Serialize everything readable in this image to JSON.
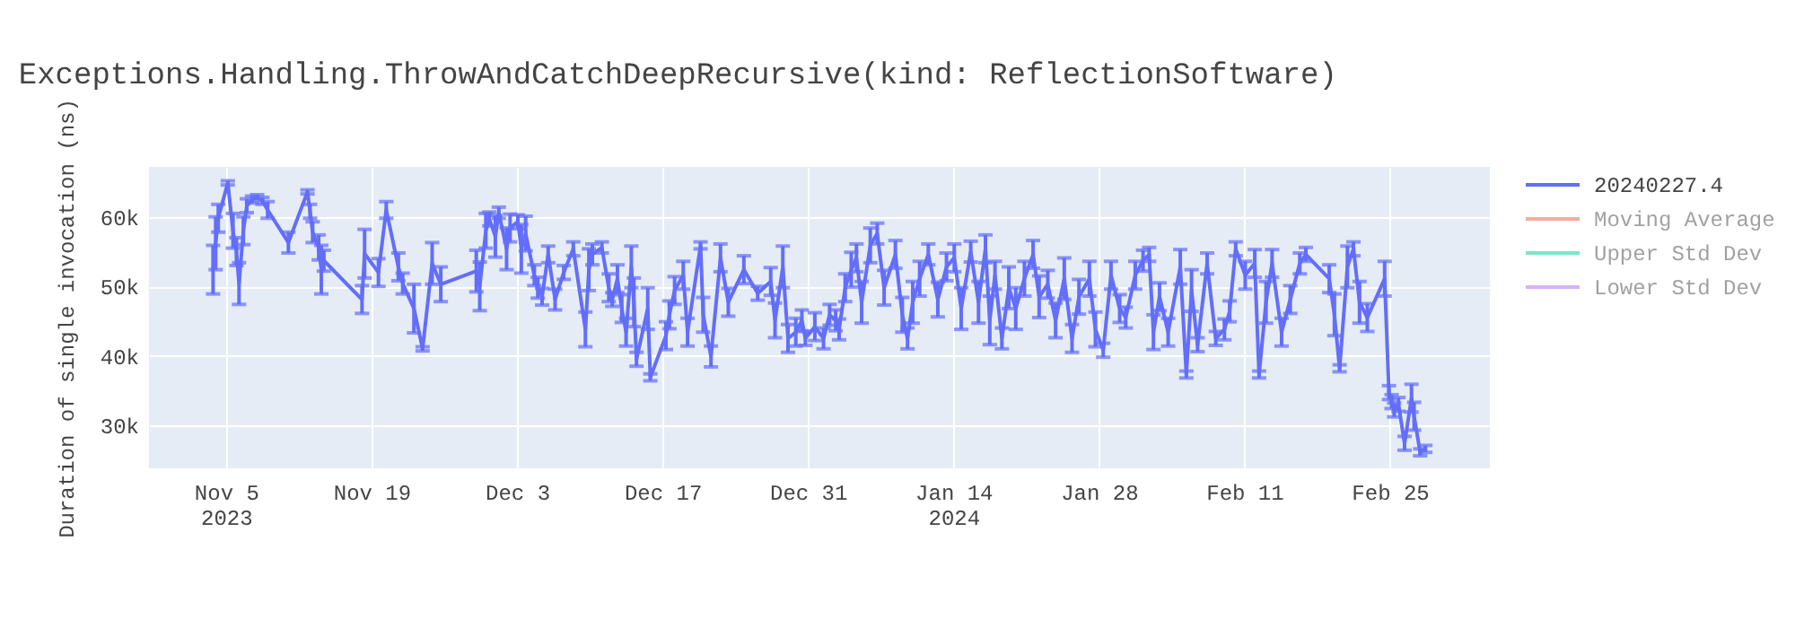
{
  "chart_data": {
    "type": "line",
    "title": "Exceptions.Handling.ThrowAndCatchDeepRecursive(kind: ReflectionSoftware)",
    "ylabel": "Duration of single invocation (ns)",
    "x": [
      "2023-11-03T18:00",
      "2023-11-04T00:00",
      "2023-11-04T06:00",
      "2023-11-05T04:00",
      "2023-11-05T16:00",
      "2023-11-06T00:00",
      "2023-11-06T06:00",
      "2023-11-06T16:00",
      "2023-11-07T00:00",
      "2023-11-07T12:00",
      "2023-11-08T00:00",
      "2023-11-08T12:00",
      "2023-11-09T00:00",
      "2023-11-11T00:00",
      "2023-11-12T20:00",
      "2023-11-13T02:00",
      "2023-11-13T08:00",
      "2023-11-13T22:00",
      "2023-11-14T04:00",
      "2023-11-14T10:00",
      "2023-11-18T02:00",
      "2023-11-18T08:00",
      "2023-11-19T16:00",
      "2023-11-20T10:00",
      "2023-11-21T14:00",
      "2023-11-22T00:00",
      "2023-11-23T02:00",
      "2023-11-23T22:00",
      "2023-11-24T20:00",
      "2023-11-25T16:00",
      "2023-11-29T02:00",
      "2023-11-29T10:00",
      "2023-11-30T00:00",
      "2023-11-30T08:00",
      "2023-11-30T22:00",
      "2023-12-01T06:00",
      "2023-12-02T00:00",
      "2023-12-02T08:00",
      "2023-12-03T02:00",
      "2023-12-03T10:00",
      "2023-12-03T20:00",
      "2023-12-04T16:00",
      "2023-12-05T00:00",
      "2023-12-05T10:00",
      "2023-12-06T00:00",
      "2023-12-06T16:00",
      "2023-12-07T12:00",
      "2023-12-08T10:00",
      "2023-12-09T14:00",
      "2023-12-09T22:00",
      "2023-12-10T06:00",
      "2023-12-11T04:00",
      "2023-12-11T20:00",
      "2023-12-12T04:00",
      "2023-12-12T16:00",
      "2023-12-13T02:00",
      "2023-12-13T12:00",
      "2023-12-14T00:00",
      "2023-12-14T06:00",
      "2023-12-14T12:00",
      "2023-12-15T14:00",
      "2023-12-15T20:00",
      "2023-12-17T08:00",
      "2023-12-17T16:00",
      "2023-12-18T04:00",
      "2023-12-19T00:00",
      "2023-12-19T10:00",
      "2023-12-20T16:00",
      "2023-12-20T22:00",
      "2023-12-21T16:00",
      "2023-12-22T14:00",
      "2023-12-23T08:00",
      "2023-12-24T20:00",
      "2023-12-26T04:00",
      "2023-12-27T10:00",
      "2023-12-27T20:00",
      "2023-12-28T14:00",
      "2023-12-29T02:00",
      "2023-12-29T20:00",
      "2023-12-30T10:00",
      "2023-12-30T18:00",
      "2023-12-31T16:00",
      "2024-01-01T12:00",
      "2024-01-02T02:00",
      "2024-01-02T16:00",
      "2024-01-03T00:00",
      "2024-01-03T14:00",
      "2024-01-04T04:00",
      "2024-01-04T16:00",
      "2024-01-05T04:00",
      "2024-01-06T00:00",
      "2024-01-06T16:00",
      "2024-01-07T08:00",
      "2024-01-08T10:00",
      "2024-01-09T02:00",
      "2024-01-09T14:00",
      "2024-01-10T02:00",
      "2024-01-10T18:00",
      "2024-01-11T14:00",
      "2024-01-12T12:00",
      "2024-01-13T08:00",
      "2024-01-14T02:00",
      "2024-01-14T18:00",
      "2024-01-15T16:00",
      "2024-01-16T10:00",
      "2024-01-17T02:00",
      "2024-01-17T12:00",
      "2024-01-18T00:00",
      "2024-01-18T16:00",
      "2024-01-19T08:00",
      "2024-01-20T00:00",
      "2024-01-20T20:00",
      "2024-01-21T16:00",
      "2024-01-22T06:00",
      "2024-01-23T02:00",
      "2024-01-23T20:00",
      "2024-01-24T16:00",
      "2024-01-25T10:00",
      "2024-01-26T02:00",
      "2024-01-27T02:00",
      "2024-01-27T16:00",
      "2024-01-28T10:00",
      "2024-01-29T04:00",
      "2024-01-30T00:00",
      "2024-01-30T14:00",
      "2024-01-31T12:00",
      "2024-02-01T06:00",
      "2024-02-01T20:00",
      "2024-02-02T06:00",
      "2024-02-02T20:00",
      "2024-02-03T16:00",
      "2024-02-04T20:00",
      "2024-02-05T10:00",
      "2024-02-05T22:00",
      "2024-02-06T12:00",
      "2024-02-07T10:00",
      "2024-02-08T06:00",
      "2024-02-09T02:00",
      "2024-02-09T14:00",
      "2024-02-10T04:00",
      "2024-02-11T02:00",
      "2024-02-12T00:00",
      "2024-02-12T10:00",
      "2024-02-13T02:00",
      "2024-02-13T16:00",
      "2024-02-14T14:00",
      "2024-02-15T10:00",
      "2024-02-16T08:00",
      "2024-02-16T22:00",
      "2024-02-19T04:00",
      "2024-02-19T16:00",
      "2024-02-20T04:00",
      "2024-02-20T22:00",
      "2024-02-21T12:00",
      "2024-02-22T02:00",
      "2024-02-22T20:00",
      "2024-02-24T12:00",
      "2024-02-24T22:00",
      "2024-02-25T04:00",
      "2024-02-25T10:00",
      "2024-02-25T20:00",
      "2024-02-26T10:00",
      "2024-02-27T02:00",
      "2024-02-27T08:00",
      "2024-02-27T22:00",
      "2024-02-28T10:00"
    ],
    "series": [
      {
        "name": "20240227.4",
        "color": "#636efa",
        "values": [
          52400,
          56200,
          59800,
          64900,
          58000,
          55000,
          50400,
          58000,
          61600,
          62500,
          62800,
          62300,
          61000,
          56300,
          63600,
          60800,
          57800,
          55600,
          52400,
          53700,
          48100,
          54700,
          52000,
          61000,
          52800,
          50400,
          46800,
          41000,
          53300,
          50300,
          52200,
          50000,
          58000,
          59700,
          57200,
          60600,
          55400,
          58400,
          59300,
          55400,
          57600,
          51600,
          49800,
          48500,
          54600,
          48100,
          52000,
          55400,
          43800,
          52400,
          54600,
          55600,
          49800,
          48100,
          51100,
          46800,
          43400,
          52800,
          47700,
          39500,
          46800,
          36900,
          42900,
          45900,
          49400,
          51600,
          43400,
          55900,
          45900,
          39900,
          54100,
          47700,
          52400,
          49000,
          50700,
          45100,
          52800,
          42500,
          43400,
          45100,
          42500,
          44200,
          42500,
          45900,
          45100,
          43800,
          49800,
          52400,
          54100,
          47700,
          55900,
          57600,
          49800,
          54600,
          45900,
          42500,
          47700,
          51100,
          54600,
          48100,
          52800,
          54100,
          46800,
          55000,
          47700,
          55400,
          45100,
          51600,
          42500,
          49800,
          46800,
          51100,
          54600,
          48500,
          50300,
          45100,
          51100,
          42500,
          48500,
          51100,
          43800,
          40800,
          51600,
          46800,
          45500,
          51600,
          53700,
          54600,
          43400,
          48500,
          43400,
          52800,
          37300,
          49400,
          41600,
          53300,
          42500,
          43800,
          46400,
          55400,
          51600,
          53300,
          37300,
          47700,
          53300,
          43400,
          48100,
          53300,
          54600,
          51100,
          45900,
          38200,
          52800,
          55400,
          47700,
          45500,
          51100,
          34700,
          33400,
          32200,
          33000,
          27400,
          33900,
          31300,
          26100,
          26600
        ],
        "errors": [
          3500,
          3800,
          2000,
          300,
          2500,
          2000,
          3000,
          2000,
          1000,
          500,
          400,
          500,
          1200,
          1500,
          300,
          1000,
          1500,
          1800,
          3500,
          1500,
          2000,
          3500,
          2000,
          1200,
          2000,
          1500,
          3500,
          300,
          3000,
          2500,
          3000,
          3500,
          2500,
          1000,
          3000,
          800,
          3000,
          2000,
          1000,
          3500,
          2500,
          1500,
          1500,
          1200,
          1200,
          1500,
          1000,
          1000,
          2500,
          3000,
          1500,
          800,
          2000,
          1000,
          2000,
          2000,
          2000,
          3000,
          3500,
          1000,
          3000,
          500,
          2000,
          2000,
          2000,
          2000,
          2000,
          500,
          2500,
          1500,
          2000,
          2000,
          2000,
          1000,
          2000,
          2500,
          3000,
          2000,
          2000,
          1500,
          1000,
          2000,
          1500,
          1500,
          1500,
          1500,
          2000,
          2500,
          2000,
          3000,
          2500,
          1500,
          2500,
          2000,
          2500,
          1500,
          3000,
          2500,
          1500,
          2500,
          2000,
          2000,
          3000,
          1500,
          3000,
          2000,
          3500,
          2000,
          1500,
          3000,
          3000,
          2500,
          2000,
          3000,
          2000,
          2500,
          3000,
          2000,
          2500,
          2500,
          2500,
          1000,
          2000,
          2000,
          1500,
          2000,
          1500,
          1000,
          2500,
          2000,
          2000,
          2500,
          500,
          3000,
          1000,
          1500,
          1000,
          1500,
          1500,
          1000,
          2000,
          2000,
          500,
          3000,
          2000,
          2000,
          2000,
          1500,
          1000,
          2000,
          3000,
          500,
          3000,
          1000,
          3000,
          2000,
          2500,
          1000,
          1000,
          1000,
          1000,
          1000,
          2000,
          2000,
          500,
          500
        ]
      },
      {
        "name": "Moving Average",
        "color": "#ef553b",
        "values": [
          null,
          null,
          null,
          null,
          null,
          null,
          null,
          null,
          null,
          null,
          null,
          null,
          null,
          null,
          null,
          null,
          null,
          null,
          null,
          null,
          null,
          null,
          null,
          null,
          null,
          null,
          null,
          null,
          null,
          null,
          null,
          null,
          null,
          null,
          null,
          null,
          null,
          null,
          null,
          null,
          null,
          null,
          null,
          null,
          null,
          null,
          null,
          null,
          null,
          null,
          null,
          null,
          null,
          null,
          null,
          null,
          null,
          null,
          null,
          null,
          null,
          null,
          null,
          null,
          null,
          null,
          null,
          null,
          null,
          null,
          null,
          null,
          null,
          null,
          null,
          null,
          null,
          null,
          null,
          null,
          null,
          null,
          null,
          null,
          null,
          null,
          null,
          null,
          null,
          null,
          null,
          null,
          null,
          null,
          null,
          null,
          null,
          null,
          null,
          null,
          null,
          null,
          null,
          null,
          null,
          null,
          null,
          null,
          null,
          null,
          null,
          null,
          null,
          null,
          null,
          null,
          null,
          null,
          null,
          null,
          null,
          null,
          null,
          null,
          null,
          null,
          null,
          null,
          null,
          null,
          null,
          null,
          null,
          null,
          null,
          null,
          null,
          null,
          null,
          null,
          null,
          null,
          null,
          null,
          null,
          null,
          null,
          null,
          null,
          null,
          null,
          null,
          null,
          null,
          null,
          null,
          null,
          null,
          null,
          null,
          null,
          null,
          null,
          null,
          null,
          null
        ]
      },
      {
        "name": "Upper Std Dev",
        "color": "#00cc96",
        "values": [
          null,
          null,
          null,
          null,
          null,
          null,
          null,
          null,
          null,
          null,
          null,
          null,
          null,
          null,
          null,
          null,
          null,
          null,
          null,
          null,
          null,
          null,
          null,
          null,
          null,
          null,
          null,
          null,
          null,
          null,
          null,
          null,
          null,
          null,
          null,
          null,
          null,
          null,
          null,
          null,
          null,
          null,
          null,
          null,
          null,
          null,
          null,
          null,
          null,
          null,
          null,
          null,
          null,
          null,
          null,
          null,
          null,
          null,
          null,
          null,
          null,
          null,
          null,
          null,
          null,
          null,
          null,
          null,
          null,
          null,
          null,
          null,
          null,
          null,
          null,
          null,
          null,
          null,
          null,
          null,
          null,
          null,
          null,
          null,
          null,
          null,
          null,
          null,
          null,
          null,
          null,
          null,
          null,
          null,
          null,
          null,
          null,
          null,
          null,
          null,
          null,
          null,
          null,
          null,
          null,
          null,
          null,
          null,
          null,
          null,
          null,
          null,
          null,
          null,
          null,
          null,
          null,
          null,
          null,
          null,
          null,
          null,
          null,
          null,
          null,
          null,
          null,
          null,
          null,
          null,
          null,
          null,
          null,
          null,
          null,
          null,
          null,
          null,
          null,
          null,
          null,
          null,
          null,
          null,
          null,
          null,
          null,
          null,
          null,
          null,
          null,
          null,
          null,
          null,
          null,
          null,
          null,
          null,
          null,
          null,
          null,
          null,
          null,
          null,
          null,
          null
        ]
      },
      {
        "name": "Lower Std Dev",
        "color": "#ab63fa",
        "values": [
          null,
          null,
          null,
          null,
          null,
          null,
          null,
          null,
          null,
          null,
          null,
          null,
          null,
          null,
          null,
          null,
          null,
          null,
          null,
          null,
          null,
          null,
          null,
          null,
          null,
          null,
          null,
          null,
          null,
          null,
          null,
          null,
          null,
          null,
          null,
          null,
          null,
          null,
          null,
          null,
          null,
          null,
          null,
          null,
          null,
          null,
          null,
          null,
          null,
          null,
          null,
          null,
          null,
          null,
          null,
          null,
          null,
          null,
          null,
          null,
          null,
          null,
          null,
          null,
          null,
          null,
          null,
          null,
          null,
          null,
          null,
          null,
          null,
          null,
          null,
          null,
          null,
          null,
          null,
          null,
          null,
          null,
          null,
          null,
          null,
          null,
          null,
          null,
          null,
          null,
          null,
          null,
          null,
          null,
          null,
          null,
          null,
          null,
          null,
          null,
          null,
          null,
          null,
          null,
          null,
          null,
          null,
          null,
          null,
          null,
          null,
          null,
          null,
          null,
          null,
          null,
          null,
          null,
          null,
          null,
          null,
          null,
          null,
          null,
          null,
          null,
          null,
          null,
          null,
          null,
          null,
          null,
          null,
          null,
          null,
          null,
          null,
          null,
          null,
          null,
          null,
          null,
          null,
          null,
          null,
          null,
          null,
          null,
          null,
          null,
          null,
          null,
          null,
          null,
          null,
          null,
          null,
          null,
          null,
          null,
          null,
          null,
          null,
          null,
          null,
          null
        ]
      }
    ],
    "xlim": [
      "2023-10-28T14:00",
      "2024-03-05T15:00"
    ],
    "xticks": [
      {
        "value": "2023-11-05",
        "label": "Nov 5\n2023"
      },
      {
        "value": "2023-11-19",
        "label": "Nov 19"
      },
      {
        "value": "2023-12-03",
        "label": "Dec 3"
      },
      {
        "value": "2023-12-17",
        "label": "Dec 17"
      },
      {
        "value": "2023-12-31",
        "label": "Dec 31"
      },
      {
        "value": "2024-01-14",
        "label": "Jan 14\n2024"
      },
      {
        "value": "2024-01-28",
        "label": "Jan 28"
      },
      {
        "value": "2024-02-11",
        "label": "Feb 11"
      },
      {
        "value": "2024-02-25",
        "label": "Feb 25"
      }
    ],
    "ylim": [
      23800,
      67200
    ],
    "yticks": [
      {
        "value": 30000,
        "label": "30k"
      },
      {
        "value": 40000,
        "label": "40k"
      },
      {
        "value": 50000,
        "label": "50k"
      },
      {
        "value": 60000,
        "label": "60k"
      }
    ],
    "grid": true,
    "legend": "right",
    "marker": "none",
    "line_style": "solid"
  }
}
